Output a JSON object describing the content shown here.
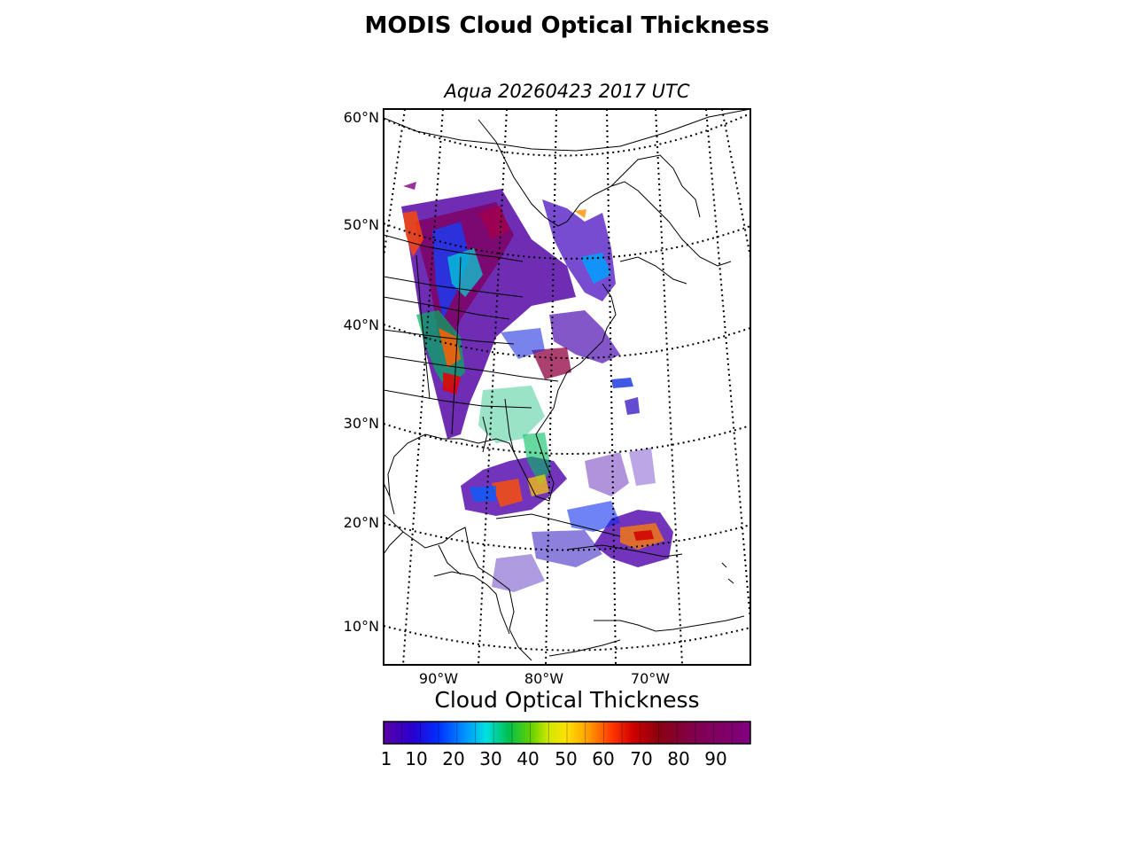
{
  "header": {
    "title": "MODIS Cloud Optical Thickness",
    "subtitle": "Aqua 20260423 2017 UTC"
  },
  "map": {
    "lat_labels": [
      "60°N",
      "50°N",
      "40°N",
      "30°N",
      "20°N",
      "10°N"
    ],
    "lon_labels": [
      "90°W",
      "80°W",
      "70°W"
    ]
  },
  "colorbar": {
    "title": "Cloud Optical Thickness",
    "ticks": [
      "1",
      "10",
      "20",
      "30",
      "40",
      "50",
      "60",
      "70",
      "80",
      "90"
    ],
    "min": 1,
    "max": 100,
    "colors": [
      "#5a00a5",
      "#1e00d8",
      "#0040ff",
      "#00a8ff",
      "#00e8d0",
      "#00c040",
      "#50d000",
      "#c8e800",
      "#ffe000",
      "#ff9800",
      "#ff3a00",
      "#d80000",
      "#8a0010",
      "#800050",
      "#800080"
    ]
  }
}
